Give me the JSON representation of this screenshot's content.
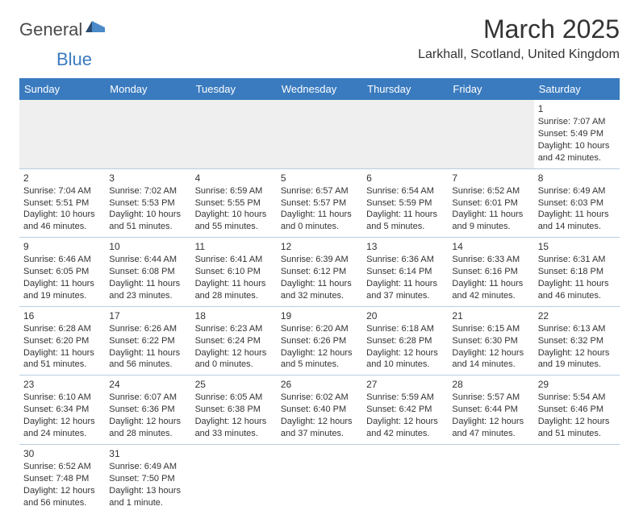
{
  "brand": {
    "part1": "General",
    "part2": "Blue"
  },
  "title": "March 2025",
  "location": "Larkhall, Scotland, United Kingdom",
  "colors": {
    "header_bg": "#3a7bbf",
    "header_text": "#ffffff",
    "row_border": "#b8cde0",
    "empty_bg": "#efefef",
    "brand_gray": "#4a4a4a",
    "brand_blue": "#3a7bbf",
    "flag_dark": "#2b4a6f",
    "flag_blue": "#4a8ac9"
  },
  "layout": {
    "week_start": "Sunday",
    "columns": 7,
    "rows": 6,
    "cell_fontsize": 11,
    "header_fontsize": 13,
    "title_fontsize": 32,
    "location_fontsize": 16
  },
  "weekdays": [
    "Sunday",
    "Monday",
    "Tuesday",
    "Wednesday",
    "Thursday",
    "Friday",
    "Saturday"
  ],
  "cells": [
    [
      {
        "empty": true
      },
      {
        "empty": true
      },
      {
        "empty": true
      },
      {
        "empty": true
      },
      {
        "empty": true
      },
      {
        "empty": true
      },
      {
        "day": "1",
        "sunrise": "Sunrise: 7:07 AM",
        "sunset": "Sunset: 5:49 PM",
        "daylight": "Daylight: 10 hours and 42 minutes."
      }
    ],
    [
      {
        "day": "2",
        "sunrise": "Sunrise: 7:04 AM",
        "sunset": "Sunset: 5:51 PM",
        "daylight": "Daylight: 10 hours and 46 minutes."
      },
      {
        "day": "3",
        "sunrise": "Sunrise: 7:02 AM",
        "sunset": "Sunset: 5:53 PM",
        "daylight": "Daylight: 10 hours and 51 minutes."
      },
      {
        "day": "4",
        "sunrise": "Sunrise: 6:59 AM",
        "sunset": "Sunset: 5:55 PM",
        "daylight": "Daylight: 10 hours and 55 minutes."
      },
      {
        "day": "5",
        "sunrise": "Sunrise: 6:57 AM",
        "sunset": "Sunset: 5:57 PM",
        "daylight": "Daylight: 11 hours and 0 minutes."
      },
      {
        "day": "6",
        "sunrise": "Sunrise: 6:54 AM",
        "sunset": "Sunset: 5:59 PM",
        "daylight": "Daylight: 11 hours and 5 minutes."
      },
      {
        "day": "7",
        "sunrise": "Sunrise: 6:52 AM",
        "sunset": "Sunset: 6:01 PM",
        "daylight": "Daylight: 11 hours and 9 minutes."
      },
      {
        "day": "8",
        "sunrise": "Sunrise: 6:49 AM",
        "sunset": "Sunset: 6:03 PM",
        "daylight": "Daylight: 11 hours and 14 minutes."
      }
    ],
    [
      {
        "day": "9",
        "sunrise": "Sunrise: 6:46 AM",
        "sunset": "Sunset: 6:05 PM",
        "daylight": "Daylight: 11 hours and 19 minutes."
      },
      {
        "day": "10",
        "sunrise": "Sunrise: 6:44 AM",
        "sunset": "Sunset: 6:08 PM",
        "daylight": "Daylight: 11 hours and 23 minutes."
      },
      {
        "day": "11",
        "sunrise": "Sunrise: 6:41 AM",
        "sunset": "Sunset: 6:10 PM",
        "daylight": "Daylight: 11 hours and 28 minutes."
      },
      {
        "day": "12",
        "sunrise": "Sunrise: 6:39 AM",
        "sunset": "Sunset: 6:12 PM",
        "daylight": "Daylight: 11 hours and 32 minutes."
      },
      {
        "day": "13",
        "sunrise": "Sunrise: 6:36 AM",
        "sunset": "Sunset: 6:14 PM",
        "daylight": "Daylight: 11 hours and 37 minutes."
      },
      {
        "day": "14",
        "sunrise": "Sunrise: 6:33 AM",
        "sunset": "Sunset: 6:16 PM",
        "daylight": "Daylight: 11 hours and 42 minutes."
      },
      {
        "day": "15",
        "sunrise": "Sunrise: 6:31 AM",
        "sunset": "Sunset: 6:18 PM",
        "daylight": "Daylight: 11 hours and 46 minutes."
      }
    ],
    [
      {
        "day": "16",
        "sunrise": "Sunrise: 6:28 AM",
        "sunset": "Sunset: 6:20 PM",
        "daylight": "Daylight: 11 hours and 51 minutes."
      },
      {
        "day": "17",
        "sunrise": "Sunrise: 6:26 AM",
        "sunset": "Sunset: 6:22 PM",
        "daylight": "Daylight: 11 hours and 56 minutes."
      },
      {
        "day": "18",
        "sunrise": "Sunrise: 6:23 AM",
        "sunset": "Sunset: 6:24 PM",
        "daylight": "Daylight: 12 hours and 0 minutes."
      },
      {
        "day": "19",
        "sunrise": "Sunrise: 6:20 AM",
        "sunset": "Sunset: 6:26 PM",
        "daylight": "Daylight: 12 hours and 5 minutes."
      },
      {
        "day": "20",
        "sunrise": "Sunrise: 6:18 AM",
        "sunset": "Sunset: 6:28 PM",
        "daylight": "Daylight: 12 hours and 10 minutes."
      },
      {
        "day": "21",
        "sunrise": "Sunrise: 6:15 AM",
        "sunset": "Sunset: 6:30 PM",
        "daylight": "Daylight: 12 hours and 14 minutes."
      },
      {
        "day": "22",
        "sunrise": "Sunrise: 6:13 AM",
        "sunset": "Sunset: 6:32 PM",
        "daylight": "Daylight: 12 hours and 19 minutes."
      }
    ],
    [
      {
        "day": "23",
        "sunrise": "Sunrise: 6:10 AM",
        "sunset": "Sunset: 6:34 PM",
        "daylight": "Daylight: 12 hours and 24 minutes."
      },
      {
        "day": "24",
        "sunrise": "Sunrise: 6:07 AM",
        "sunset": "Sunset: 6:36 PM",
        "daylight": "Daylight: 12 hours and 28 minutes."
      },
      {
        "day": "25",
        "sunrise": "Sunrise: 6:05 AM",
        "sunset": "Sunset: 6:38 PM",
        "daylight": "Daylight: 12 hours and 33 minutes."
      },
      {
        "day": "26",
        "sunrise": "Sunrise: 6:02 AM",
        "sunset": "Sunset: 6:40 PM",
        "daylight": "Daylight: 12 hours and 37 minutes."
      },
      {
        "day": "27",
        "sunrise": "Sunrise: 5:59 AM",
        "sunset": "Sunset: 6:42 PM",
        "daylight": "Daylight: 12 hours and 42 minutes."
      },
      {
        "day": "28",
        "sunrise": "Sunrise: 5:57 AM",
        "sunset": "Sunset: 6:44 PM",
        "daylight": "Daylight: 12 hours and 47 minutes."
      },
      {
        "day": "29",
        "sunrise": "Sunrise: 5:54 AM",
        "sunset": "Sunset: 6:46 PM",
        "daylight": "Daylight: 12 hours and 51 minutes."
      }
    ],
    [
      {
        "day": "30",
        "sunrise": "Sunrise: 6:52 AM",
        "sunset": "Sunset: 7:48 PM",
        "daylight": "Daylight: 12 hours and 56 minutes."
      },
      {
        "day": "31",
        "sunrise": "Sunrise: 6:49 AM",
        "sunset": "Sunset: 7:50 PM",
        "daylight": "Daylight: 13 hours and 1 minute."
      },
      {
        "empty": true
      },
      {
        "empty": true
      },
      {
        "empty": true
      },
      {
        "empty": true
      },
      {
        "empty": true
      }
    ]
  ]
}
